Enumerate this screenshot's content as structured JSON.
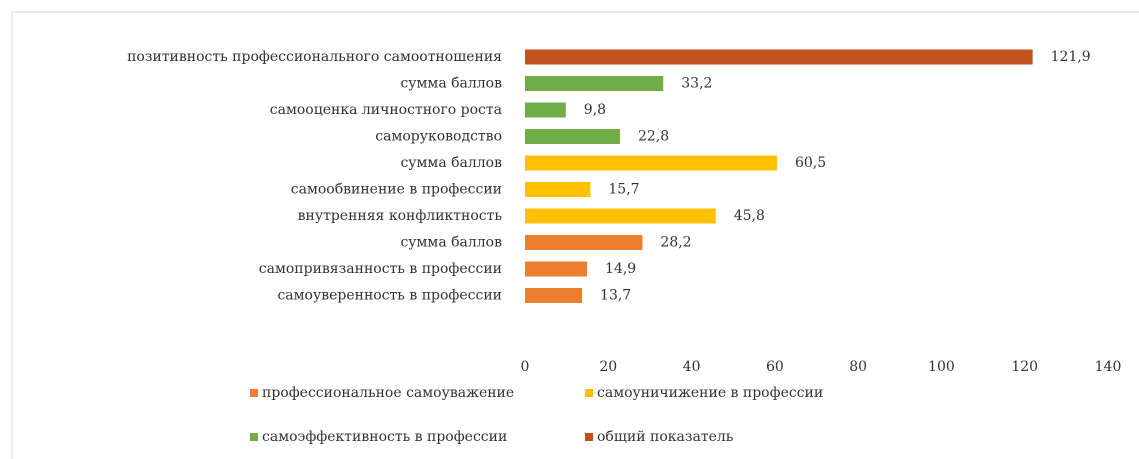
{
  "chart_data": {
    "type": "bar",
    "orientation": "horizontal",
    "categories": [
      "позитивность профессионального самоотношения",
      "сумма баллов",
      "самооценка личностного роста",
      "саморуководство",
      "сумма баллов",
      "самообвинение в профессии",
      "внутренняя конфликтность",
      "сумма баллов",
      "самопривязанность в профессии",
      "самоуверенность в профессии"
    ],
    "series": [
      {
        "name": "профессиональное самоуважение",
        "color": "#ed7d31",
        "values": [
          null,
          null,
          null,
          null,
          null,
          null,
          null,
          28.2,
          14.9,
          13.7
        ],
        "value_labels": [
          null,
          null,
          null,
          null,
          null,
          null,
          null,
          "28,2",
          "14,9",
          "13,7"
        ]
      },
      {
        "name": "самоуничижение в профессии",
        "color": "#ffc000",
        "values": [
          null,
          null,
          null,
          null,
          60.5,
          15.7,
          45.8,
          null,
          null,
          null
        ],
        "value_labels": [
          null,
          null,
          null,
          null,
          "60,5",
          "15,7",
          "45,8",
          null,
          null,
          null
        ]
      },
      {
        "name": "самоэффективность в профессии",
        "color": "#70ad47",
        "values": [
          null,
          33.2,
          9.8,
          22.8,
          null,
          null,
          null,
          null,
          null,
          null
        ],
        "value_labels": [
          null,
          "33,2",
          "9,8",
          "22,8",
          null,
          null,
          null,
          null,
          null,
          null
        ]
      },
      {
        "name": "общий показатель",
        "color": "#c0501c",
        "values": [
          121.9,
          null,
          null,
          null,
          null,
          null,
          null,
          null,
          null,
          null
        ],
        "value_labels": [
          "121,9",
          null,
          null,
          null,
          null,
          null,
          null,
          null,
          null,
          null
        ]
      }
    ],
    "xlim": [
      0,
      140
    ],
    "xticks": [
      0,
      20,
      40,
      60,
      80,
      100,
      120,
      140
    ],
    "grid": false
  }
}
